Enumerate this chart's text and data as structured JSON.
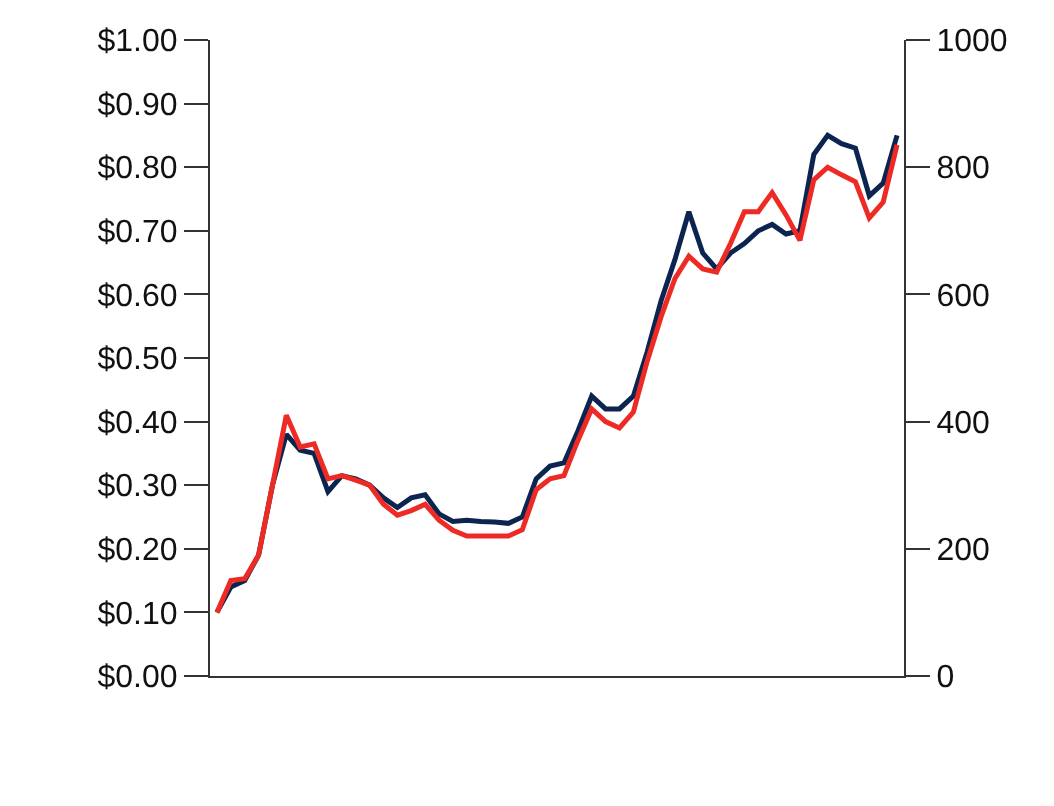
{
  "chart_data": {
    "type": "line",
    "categories": [
      null,
      null,
      null,
      null,
      null,
      null,
      null,
      null,
      null,
      null,
      null,
      null,
      null,
      null,
      null,
      null,
      null,
      null,
      null,
      null,
      null,
      null,
      null,
      null,
      null,
      null,
      null,
      null,
      null,
      null,
      null,
      null,
      null,
      null,
      null,
      null,
      null,
      null,
      null,
      null,
      null,
      null,
      null,
      null,
      null,
      null,
      null,
      null,
      null,
      null
    ],
    "series": [
      {
        "color": "#0c2550",
        "values": [
          0.1,
          0.14,
          0.15,
          0.19,
          0.3,
          0.38,
          0.355,
          0.35,
          0.29,
          0.315,
          0.31,
          0.3,
          0.28,
          0.265,
          0.28,
          0.285,
          0.255,
          0.243,
          0.245,
          0.243,
          0.242,
          0.24,
          0.25,
          0.31,
          0.33,
          0.335,
          0.385,
          0.44,
          0.42,
          0.42,
          0.44,
          0.51,
          0.59,
          0.655,
          0.73,
          0.665,
          0.64,
          0.665,
          0.68,
          0.7,
          0.71,
          0.695,
          0.7,
          0.82,
          0.85,
          0.837,
          0.83,
          0.755,
          0.775,
          0.85
        ]
      },
      {
        "color": "#ee2a24",
        "axis": "y2",
        "values": [
          100,
          150,
          153,
          190,
          300,
          410,
          360,
          365,
          310,
          315,
          308,
          300,
          270,
          253,
          260,
          270,
          245,
          229,
          220,
          220,
          220,
          220,
          230,
          293,
          310,
          315,
          370,
          420,
          400,
          390,
          415,
          495,
          565,
          625,
          660,
          640,
          635,
          680,
          730,
          730,
          760,
          725,
          685,
          780,
          800,
          788,
          777,
          720,
          745,
          835
        ]
      }
    ],
    "ylim": [
      0,
      1
    ],
    "yticks": [
      {
        "value": 0,
        "label": "$0.00"
      },
      {
        "value": 0.1,
        "label": "$0.10"
      },
      {
        "value": 0.2,
        "label": "$0.20"
      },
      {
        "value": 0.3,
        "label": "$0.30"
      },
      {
        "value": 0.4,
        "label": "$0.40"
      },
      {
        "value": 0.5,
        "label": "$0.50"
      },
      {
        "value": 0.6,
        "label": "$0.60"
      },
      {
        "value": 0.7,
        "label": "$0.70"
      },
      {
        "value": 0.8,
        "label": "$0.80"
      },
      {
        "value": 0.9,
        "label": "$0.90"
      },
      {
        "value": 1,
        "label": "$1.00"
      }
    ],
    "y2lim": [
      0,
      1000
    ],
    "y2ticks": [
      0,
      200,
      400,
      600,
      800,
      1000
    ],
    "marker": "none",
    "line_style": "solid"
  }
}
